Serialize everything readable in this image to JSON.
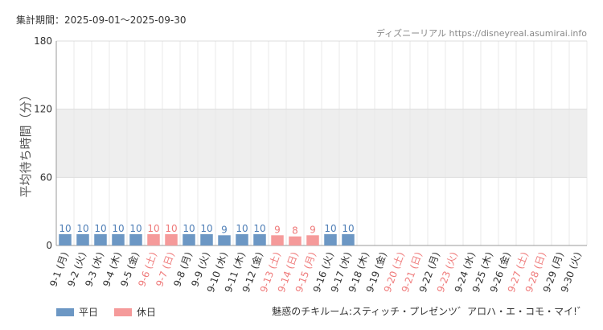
{
  "header": {
    "period": "集計期間：2025-09-01～2025-09-30",
    "source": "ディズニーリアル https://disneyreal.asumirai.info"
  },
  "legend": {
    "weekday": "平日",
    "holiday": "休日"
  },
  "attraction": "魅惑のチキルーム:スティッチ・プレゼンツ゛アロハ・エ・コモ・マイ!゛",
  "colors": {
    "weekday": "#6c97c4",
    "holiday": "#f59a9a",
    "weekday_text": "#4f7fb7",
    "holiday_text": "#ef7b7b",
    "band": "#eeeeee"
  },
  "chart_data": {
    "type": "bar",
    "ylabel": "平均待ち時間（分）",
    "ylim": [
      0,
      180
    ],
    "yticks": [
      0,
      60,
      120,
      180
    ],
    "grid": true,
    "legend_position": "bottom-left",
    "categories": [
      "9-1 (月)",
      "9-2 (火)",
      "9-3 (水)",
      "9-4 (木)",
      "9-5 (金)",
      "9-6 (土)",
      "9-7 (日)",
      "9-8 (月)",
      "9-9 (火)",
      "9-10 (水)",
      "9-11 (木)",
      "9-12 (金)",
      "9-13 (土)",
      "9-14 (日)",
      "9-15 (月)",
      "9-16 (火)",
      "9-17 (水)",
      "9-18 (木)",
      "9-19 (金)",
      "9-20 (土)",
      "9-21 (日)",
      "9-22 (月)",
      "9-23 (火)",
      "9-24 (水)",
      "9-25 (木)",
      "9-26 (金)",
      "9-27 (土)",
      "9-28 (日)",
      "9-29 (月)",
      "9-30 (火)"
    ],
    "day_type": [
      "weekday",
      "weekday",
      "weekday",
      "weekday",
      "weekday",
      "holiday",
      "holiday",
      "weekday",
      "weekday",
      "weekday",
      "weekday",
      "weekday",
      "holiday",
      "holiday",
      "holiday",
      "weekday",
      "weekday",
      "weekday",
      "weekday",
      "holiday",
      "holiday",
      "weekday",
      "holiday",
      "weekday",
      "weekday",
      "weekday",
      "holiday",
      "holiday",
      "weekday",
      "weekday"
    ],
    "values": [
      10,
      10,
      10,
      10,
      10,
      10,
      10,
      10,
      10,
      9,
      10,
      10,
      9,
      8,
      9,
      10,
      10,
      null,
      null,
      null,
      null,
      null,
      null,
      null,
      null,
      null,
      null,
      null,
      null,
      null
    ]
  }
}
